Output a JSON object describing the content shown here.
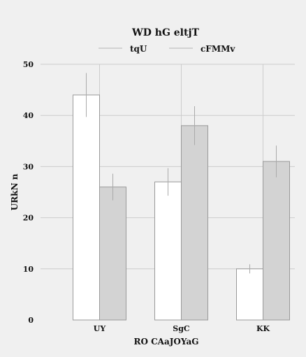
{
  "chart_data": {
    "type": "bar",
    "title": "WD hG  eltjT",
    "xlabel": "RO  CAaJOYaG",
    "ylabel": "URkN  n",
    "categories": [
      "UY",
      "SgC",
      "KK"
    ],
    "ylim": [
      0,
      50
    ],
    "yticks": [
      0,
      10,
      20,
      30,
      40,
      50
    ],
    "grid": true,
    "legend_position": "top-center",
    "series": [
      {
        "name": "tqU",
        "color": "#ffffff",
        "values": [
          44,
          27,
          10
        ],
        "errors": [
          4.3,
          2.7,
          0.9
        ]
      },
      {
        "name": "cFMMv",
        "color": "#d3d3d3",
        "values": [
          26,
          38,
          31
        ],
        "errors": [
          2.6,
          3.8,
          3.1
        ]
      }
    ]
  }
}
